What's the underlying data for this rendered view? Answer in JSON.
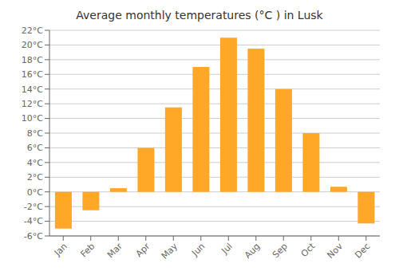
{
  "chart_data": {
    "type": "bar",
    "title": "Average monthly temperatures (°C ) in Lusk",
    "categories": [
      "Jan",
      "Feb",
      "Mar",
      "Apr",
      "May",
      "Jun",
      "Jul",
      "Aug",
      "Sep",
      "Oct",
      "Nov",
      "Dec"
    ],
    "values": [
      -5.0,
      -2.5,
      0.5,
      6.0,
      11.5,
      17.0,
      21.0,
      19.5,
      14.0,
      8.0,
      0.7,
      -4.3
    ],
    "color": "#FFA726",
    "ylim": [
      -6,
      22
    ],
    "yticks": [
      {
        "value": -6,
        "label": "-6°C"
      },
      {
        "value": -4,
        "label": "-4°C"
      },
      {
        "value": -2,
        "label": "-2°C"
      },
      {
        "value": 0,
        "label": "0°C"
      },
      {
        "value": 2,
        "label": "2°C"
      },
      {
        "value": 4,
        "label": "4°C"
      },
      {
        "value": 6,
        "label": "6°C"
      },
      {
        "value": 8,
        "label": "8°C"
      },
      {
        "value": 10,
        "label": "10°C"
      },
      {
        "value": 12,
        "label": "12°C"
      },
      {
        "value": 14,
        "label": "14°C"
      },
      {
        "value": 16,
        "label": "16°C"
      },
      {
        "value": 18,
        "label": "18°C"
      },
      {
        "value": 20,
        "label": "20°C"
      },
      {
        "value": 22,
        "label": "22°C"
      }
    ],
    "grid": true
  }
}
